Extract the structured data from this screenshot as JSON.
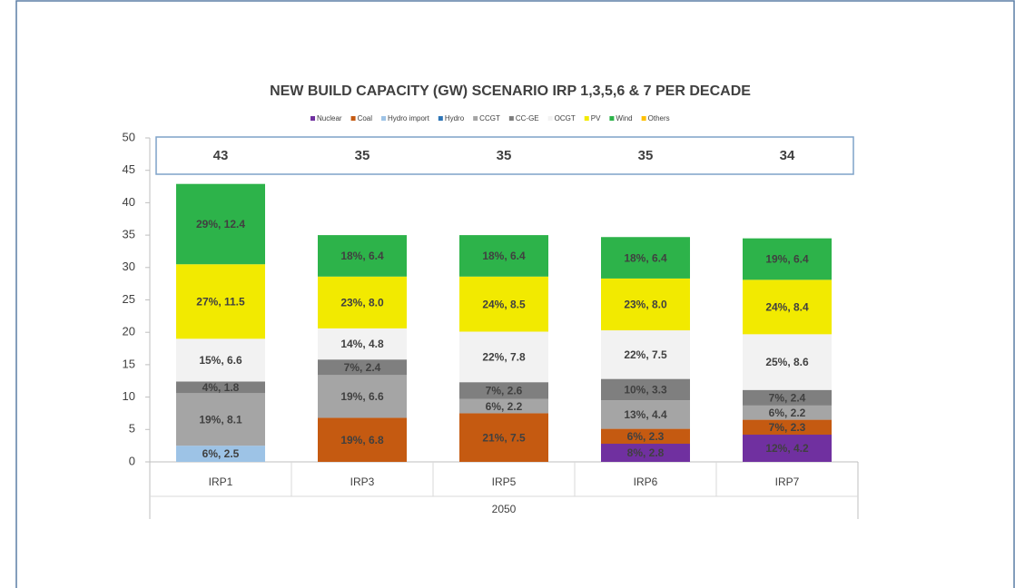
{
  "chart_data": {
    "type": "stacked-bar",
    "title": "NEW BUILD CAPACITY (GW) SCENARIO IRP 1,3,5,6 & 7 PER DECADE",
    "categories": [
      "IRP1",
      "IRP3",
      "IRP5",
      "IRP6",
      "IRP7"
    ],
    "group_label": "2050",
    "totals": [
      43,
      35,
      35,
      35,
      34
    ],
    "ylim": [
      0,
      50
    ],
    "yticks": [
      0,
      5,
      10,
      15,
      20,
      25,
      30,
      35,
      40,
      45,
      50
    ],
    "series": [
      {
        "name": "Nuclear",
        "color": "#7030a0",
        "label_color": "#ffffff",
        "values": [
          null,
          null,
          null,
          2.8,
          4.2
        ],
        "value_labels": [
          null,
          null,
          null,
          "8%, 2.8",
          "12%, 4.2"
        ]
      },
      {
        "name": "Coal",
        "color": "#c55a11",
        "label_color": "#000000",
        "values": [
          null,
          6.8,
          7.5,
          2.3,
          2.3
        ],
        "value_labels": [
          null,
          "19%, 6.8",
          "21%, 7.5",
          "6%, 2.3",
          "7%, 2.3"
        ]
      },
      {
        "name": "Hydro import",
        "color": "#9dc3e6",
        "label_color": "#000000",
        "values": [
          2.5,
          null,
          null,
          null,
          null
        ],
        "value_labels": [
          "6%, 2.5",
          null,
          null,
          null,
          null
        ]
      },
      {
        "name": "Hydro",
        "color": "#2e75b6",
        "label_color": "#000000",
        "values": [
          null,
          null,
          null,
          null,
          null
        ],
        "value_labels": [
          null,
          null,
          null,
          null,
          null
        ]
      },
      {
        "name": "CCGT",
        "color": "#a5a5a5",
        "label_color": "#000000",
        "values": [
          8.1,
          6.6,
          2.2,
          4.4,
          2.2
        ],
        "value_labels": [
          "19%, 8.1",
          "19%, 6.6",
          "6%, 2.2",
          "13%, 4.4",
          "6%, 2.2"
        ]
      },
      {
        "name": "CC-GE",
        "color": "#7f7f7f",
        "label_color": "#000000",
        "values": [
          1.8,
          2.4,
          2.6,
          3.3,
          2.4
        ],
        "value_labels": [
          "4%, 1.8",
          "7%, 2.4",
          "7%, 2.6",
          "10%, 3.3",
          "7%, 2.4"
        ]
      },
      {
        "name": "OCGT",
        "color": "#f2f2f2",
        "label_color": "#000000",
        "values": [
          6.6,
          4.8,
          7.8,
          7.5,
          8.6
        ],
        "value_labels": [
          "15%, 6.6",
          "14%, 4.8",
          "22%, 7.8",
          "22%, 7.5",
          "25%, 8.6"
        ]
      },
      {
        "name": "PV",
        "color": "#f2ea00",
        "label_color": "#000000",
        "values": [
          11.5,
          8.0,
          8.5,
          8.0,
          8.4
        ],
        "value_labels": [
          "27%, 11.5",
          "23%, 8.0",
          "24%, 8.5",
          "23%, 8.0",
          "24%, 8.4"
        ]
      },
      {
        "name": "Wind",
        "color": "#2db34a",
        "label_color": "#000000",
        "values": [
          12.4,
          6.4,
          6.4,
          6.4,
          6.4
        ],
        "value_labels": [
          "29%, 12.4",
          "18%, 6.4",
          "18%, 6.4",
          "18%, 6.4",
          "19%, 6.4"
        ]
      },
      {
        "name": "Others",
        "color": "#ffc000",
        "label_color": "#000000",
        "values": [
          null,
          null,
          null,
          null,
          null
        ],
        "value_labels": [
          null,
          null,
          null,
          null,
          null
        ]
      }
    ]
  }
}
